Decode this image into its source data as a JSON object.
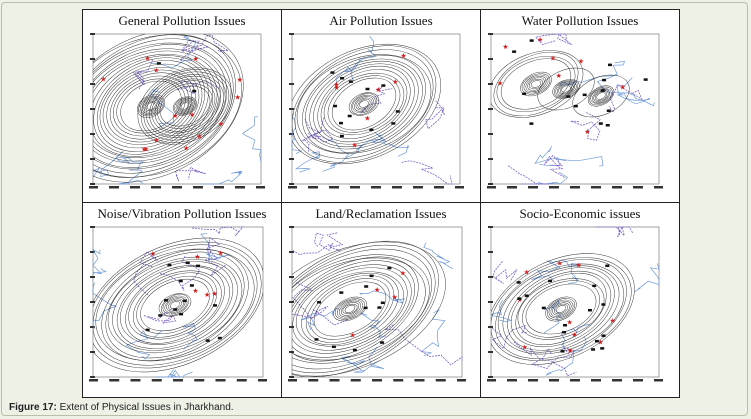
{
  "figure": {
    "panels": [
      {
        "title": "General Pollution Issues"
      },
      {
        "title": "Air Pollution Issues"
      },
      {
        "title": "Water Pollution Issues"
      },
      {
        "title": "Noise/Vibration Pollution Issues"
      },
      {
        "title": "Land/Reclamation Issues"
      },
      {
        "title": "Socio-Economic issues"
      }
    ],
    "caption_label": "Figure 17:",
    "caption_text": " Extent of Physical Issues in Jharkhand."
  },
  "colors": {
    "contour": "#2a2a2a",
    "boundary": "#7a5fc9",
    "river": "#6f9ad8",
    "marker_red": "#d41c1c",
    "marker_black": "#111111"
  }
}
